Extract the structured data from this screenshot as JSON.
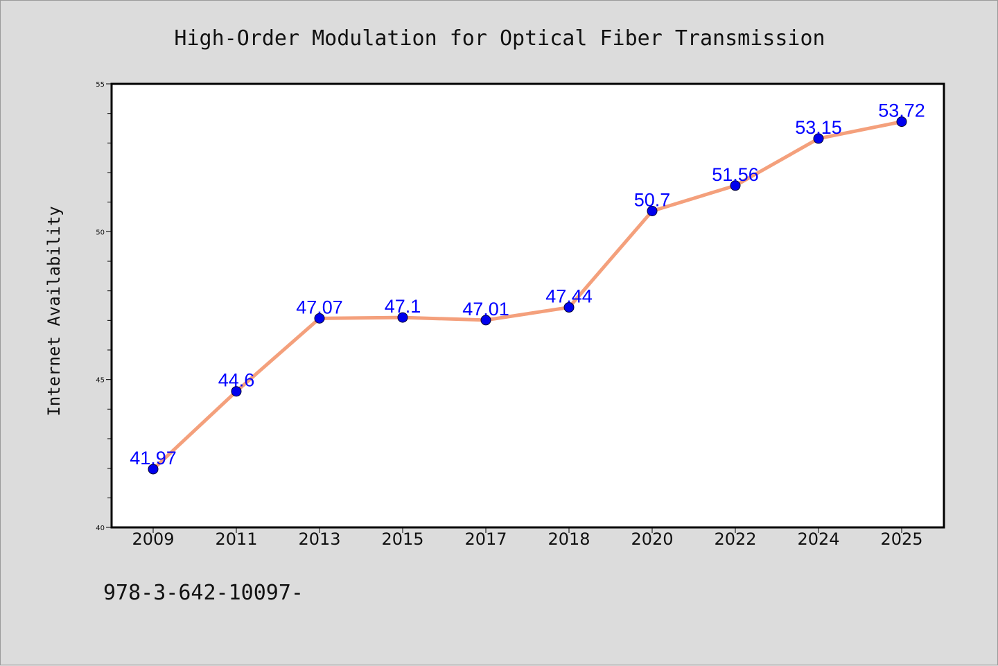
{
  "footnote": "978-3-642-10097-",
  "colors": {
    "background": "#dcdcdc",
    "plot_background": "#ffffff",
    "line": "#f4a07c",
    "marker": "#0000ee",
    "data_label": "#0000ff"
  },
  "chart_data": {
    "type": "line",
    "title": "High-Order Modulation for Optical Fiber Transmission",
    "xlabel": "",
    "ylabel": "Internet Availability",
    "categories": [
      "2009",
      "2011",
      "2013",
      "2015",
      "2017",
      "2018",
      "2020",
      "2022",
      "2024",
      "2025"
    ],
    "series": [
      {
        "values": [
          41.97,
          44.6,
          47.07,
          47.1,
          47.01,
          47.44,
          50.7,
          51.56,
          53.15,
          53.72
        ],
        "labels": [
          "41.97",
          "44.6",
          "47.07",
          "47.1",
          "47.01",
          "47.44",
          "50.7",
          "51.56",
          "53.15",
          "53.72"
        ]
      }
    ],
    "ylim": [
      40,
      55
    ],
    "yticks": [
      40,
      45,
      50,
      55
    ],
    "y_minor_step": 1,
    "grid": false,
    "legend": "none"
  }
}
